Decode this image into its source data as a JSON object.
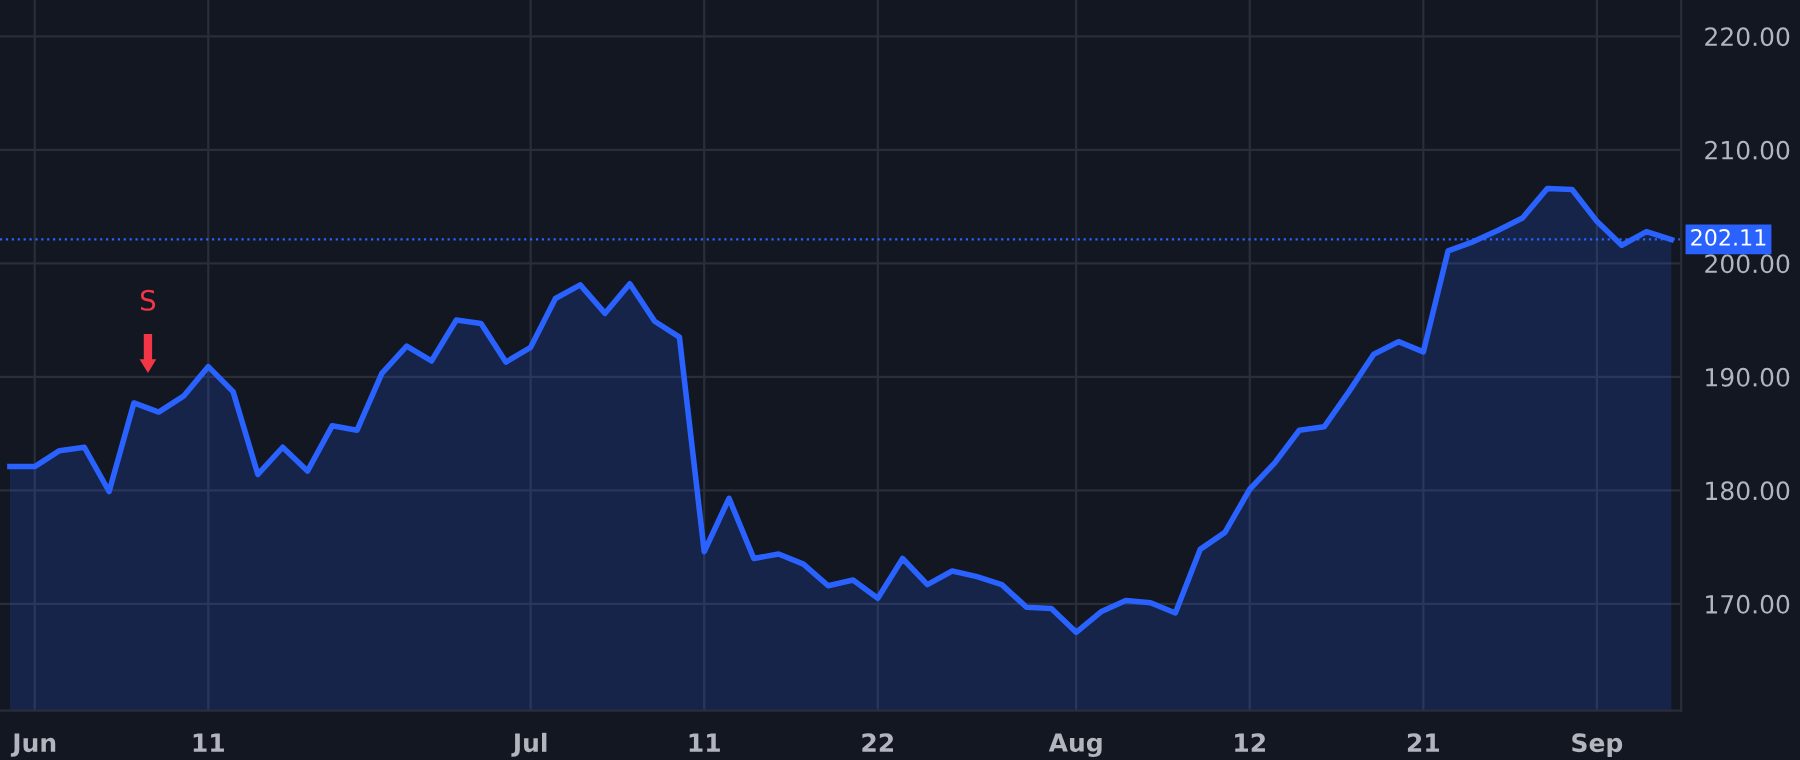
{
  "chart_data": {
    "type": "area",
    "categories": [
      null,
      "Jun",
      null,
      null,
      null,
      null,
      null,
      null,
      "11",
      null,
      null,
      null,
      null,
      null,
      null,
      null,
      null,
      null,
      null,
      null,
      null,
      "Jul",
      null,
      null,
      null,
      null,
      null,
      null,
      "11",
      null,
      null,
      null,
      null,
      null,
      null,
      "22",
      null,
      null,
      null,
      null,
      null,
      null,
      null,
      "Aug",
      null,
      null,
      null,
      null,
      null,
      null,
      "12",
      null,
      null,
      null,
      null,
      null,
      null,
      "21",
      null,
      null,
      null,
      null,
      null,
      null,
      "Sep",
      null,
      null,
      null
    ],
    "series": [
      {
        "color": "#2962ff",
        "values": [
          182.1,
          182.1,
          183.5,
          183.8,
          179.9,
          187.7,
          186.9,
          188.3,
          190.9,
          188.7,
          181.4,
          183.8,
          181.7,
          185.7,
          185.3,
          190.3,
          192.7,
          191.4,
          195.0,
          194.7,
          191.3,
          192.6,
          196.9,
          198.1,
          195.6,
          198.2,
          194.9,
          193.5,
          174.6,
          179.3,
          174.0,
          174.4,
          173.5,
          171.6,
          172.1,
          170.5,
          174.0,
          171.7,
          172.9,
          172.4,
          171.7,
          169.7,
          169.6,
          167.5,
          169.3,
          170.3,
          170.1,
          169.2,
          174.8,
          176.3,
          180.1,
          182.4,
          185.3,
          185.6,
          188.7,
          192.0,
          193.1,
          192.2,
          201.1,
          201.9,
          202.9,
          204.0,
          206.6,
          206.5,
          203.7,
          201.6,
          202.8,
          202.1
        ]
      }
    ],
    "ylim": [
      160.6,
      223.2
    ],
    "yticks": [
      {
        "value": 170,
        "label": "170.00"
      },
      {
        "value": 180,
        "label": "180.00"
      },
      {
        "value": 190,
        "label": "190.00"
      },
      {
        "value": 200,
        "label": "200.00"
      },
      {
        "value": 210,
        "label": "210.00"
      },
      {
        "value": 220,
        "label": "220.00"
      }
    ],
    "ref_lines": [
      {
        "axis": "y",
        "value": 202.11,
        "label": "202.11",
        "color": "#2962ff",
        "line_style": "dotted"
      }
    ],
    "annotations": [
      "S"
    ],
    "grid": true
  }
}
